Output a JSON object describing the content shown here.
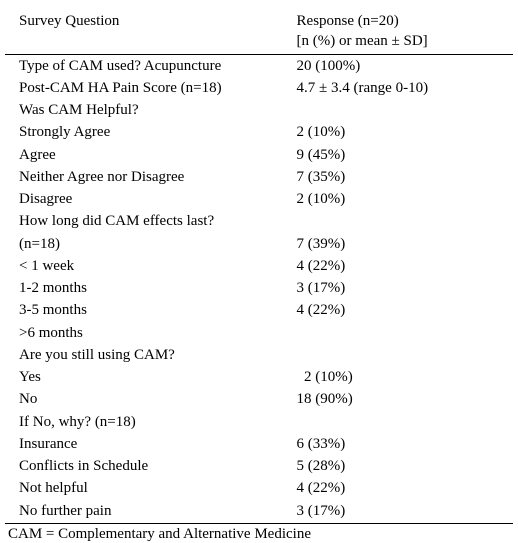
{
  "header": {
    "col1_line1": "Survey Question",
    "col2_line1": "Response (n=20)",
    "col2_line2": "[n (%) or mean ± SD]"
  },
  "rows": [
    {
      "q": "Type of CAM used? Acupuncture",
      "r": "20 (100%)"
    },
    {
      "q": "Post-CAM HA Pain Score (n=18)",
      "r": "4.7 ± 3.4 (range 0-10)"
    },
    {
      "q": "Was CAM Helpful?",
      "r": ""
    },
    {
      "q": "Strongly Agree",
      "r": "2 (10%)"
    },
    {
      "q": "Agree",
      "r": "9 (45%)"
    },
    {
      "q": "Neither Agree nor Disagree",
      "r": "7 (35%)"
    },
    {
      "q": "Disagree",
      "r": "2 (10%)"
    },
    {
      "q": "How long did CAM effects last?",
      "r": ""
    },
    {
      "q": "(n=18)",
      "r": "7 (39%)"
    },
    {
      "q": "< 1 week",
      "r": "4 (22%)"
    },
    {
      "q": "1-2 months",
      "r": "3 (17%)"
    },
    {
      "q": "3-5 months",
      "r": "4 (22%)"
    },
    {
      "q": ">6 months",
      "r": ""
    },
    {
      "q": "Are you still using CAM?",
      "r": ""
    },
    {
      "q": "Yes",
      "r": "  2 (10%)",
      "extra": true
    },
    {
      "q": "No",
      "r": "18 (90%)"
    },
    {
      "q": "If No, why? (n=18)",
      "r": ""
    },
    {
      "q": "Insurance",
      "r": "6 (33%)"
    },
    {
      "q": "Conflicts in Schedule",
      "r": "5 (28%)"
    },
    {
      "q": "Not helpful",
      "r": "4 (22%)"
    },
    {
      "q": "No further pain",
      "r": "3 (17%)"
    }
  ],
  "footnote": "CAM = Complementary and Alternative Medicine",
  "style": {
    "font_family": "Times New Roman",
    "font_size_pt": 11,
    "text_color": "#000000",
    "background": "#ffffff",
    "rule_color": "#000000",
    "col_widths_pct": [
      57,
      43
    ]
  }
}
